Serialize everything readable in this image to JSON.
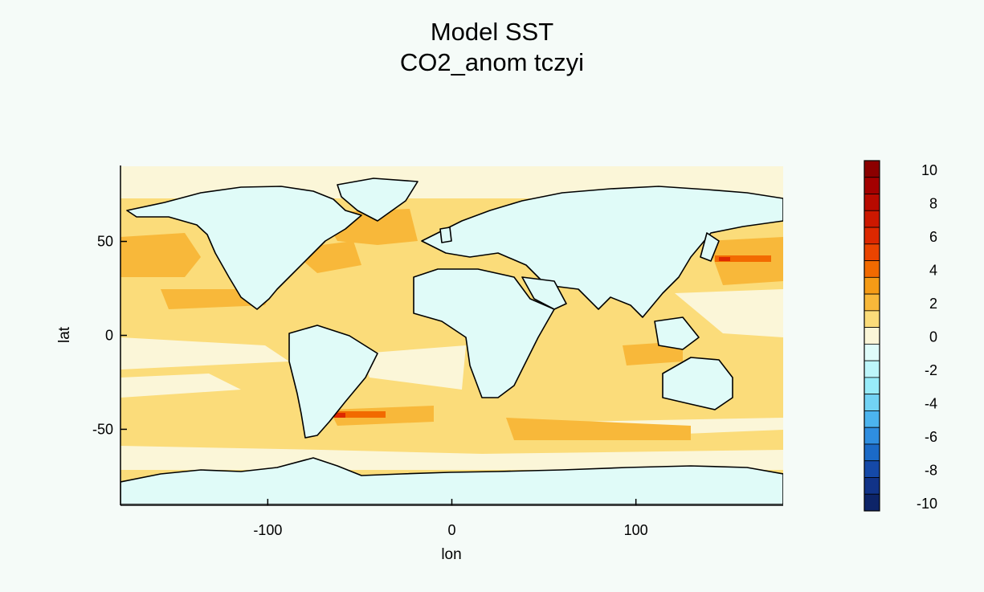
{
  "chart_data": {
    "type": "heatmap",
    "title": "Model SST",
    "subtitle": "CO2_anom tczyi",
    "xlabel": "lon",
    "ylabel": "lat",
    "xlim": [
      -180,
      180
    ],
    "ylim": [
      -90,
      90
    ],
    "x_ticks": [
      -100,
      0,
      100
    ],
    "y_ticks": [
      50,
      0,
      -50
    ],
    "grid": false,
    "colorbar": {
      "placement": "right",
      "tick_labels": [
        "10",
        "8",
        "6",
        "4",
        "2",
        "0",
        "-2",
        "-4",
        "-6",
        "-8",
        "-10"
      ],
      "levels": [
        {
          "value": 10,
          "color": "#8b0000"
        },
        {
          "value": 9,
          "color": "#a30000"
        },
        {
          "value": 8,
          "color": "#b80a00"
        },
        {
          "value": 7,
          "color": "#cc1800"
        },
        {
          "value": 6,
          "color": "#dd2800"
        },
        {
          "value": 5,
          "color": "#ea4400"
        },
        {
          "value": 4,
          "color": "#f26a00"
        },
        {
          "value": 3,
          "color": "#f59b16"
        },
        {
          "value": 2,
          "color": "#f8b83a"
        },
        {
          "value": 1,
          "color": "#fbdc7a"
        },
        {
          "value": 0,
          "color": "#fbf6d8"
        },
        {
          "value": -1,
          "color": "#dffcfa"
        },
        {
          "value": -2,
          "color": "#bdf6fb"
        },
        {
          "value": -3,
          "color": "#98ecfa"
        },
        {
          "value": -4,
          "color": "#72d3f5"
        },
        {
          "value": -5,
          "color": "#4cb4ee"
        },
        {
          "value": -6,
          "color": "#2f8ee0"
        },
        {
          "value": -7,
          "color": "#1b6ac7"
        },
        {
          "value": -8,
          "color": "#1549a8"
        },
        {
          "value": -9,
          "color": "#113388"
        },
        {
          "value": -10,
          "color": "#0d2468"
        }
      ]
    },
    "colors": {
      "land": "#e0fbf8",
      "ocean_base": "#fbdc7a",
      "near_zero": "#fbf6d8",
      "warm": "#f8b83a",
      "hot": "#f26a00",
      "extreme": "#dd2800"
    }
  }
}
